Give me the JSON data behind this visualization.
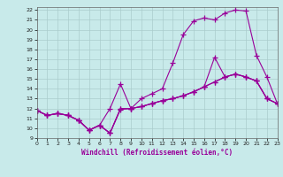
{
  "xlabel": "Windchill (Refroidissement éolien,°C)",
  "background_color": "#c8eaea",
  "grid_color": "#aacccc",
  "line_color": "#990099",
  "xlim": [
    0,
    23
  ],
  "ylim": [
    9,
    22.3
  ],
  "xticks": [
    0,
    1,
    2,
    3,
    4,
    5,
    6,
    7,
    8,
    9,
    10,
    11,
    12,
    13,
    14,
    15,
    16,
    17,
    18,
    19,
    20,
    21,
    22,
    23
  ],
  "yticks": [
    9,
    10,
    11,
    12,
    13,
    14,
    15,
    16,
    17,
    18,
    19,
    20,
    21,
    22
  ],
  "lines": [
    {
      "x": [
        0,
        1,
        2,
        3,
        4,
        5,
        6,
        7,
        8,
        9,
        10,
        11,
        12,
        13,
        14,
        15,
        16,
        17,
        18,
        19,
        20,
        21,
        22,
        23
      ],
      "y": [
        11.8,
        11.3,
        11.5,
        11.3,
        10.8,
        9.8,
        10.3,
        9.5,
        11.9,
        12.0,
        13.0,
        13.5,
        14.0,
        16.6,
        19.5,
        20.9,
        21.2,
        21.0,
        21.7,
        22.0,
        21.9,
        17.4,
        15.2,
        12.5
      ]
    },
    {
      "x": [
        0,
        1,
        2,
        3,
        4,
        5,
        6,
        7,
        8,
        9,
        10,
        11,
        12,
        13,
        14,
        15,
        16,
        17,
        18,
        19,
        20,
        21,
        22,
        23
      ],
      "y": [
        11.8,
        11.3,
        11.5,
        11.3,
        10.8,
        9.8,
        10.3,
        9.5,
        12.0,
        12.0,
        12.2,
        12.5,
        12.8,
        13.0,
        13.3,
        13.7,
        14.2,
        14.7,
        15.2,
        15.5,
        15.2,
        14.8,
        13.0,
        12.5
      ]
    },
    {
      "x": [
        0,
        1,
        2,
        3,
        4,
        5,
        6,
        7,
        8,
        9,
        10,
        11,
        12,
        13,
        14,
        15,
        16,
        17,
        18,
        19,
        20,
        21,
        22,
        23
      ],
      "y": [
        11.8,
        11.3,
        11.5,
        11.3,
        10.8,
        9.8,
        10.3,
        12.0,
        14.5,
        12.0,
        12.2,
        12.5,
        12.8,
        13.0,
        13.3,
        13.7,
        14.2,
        14.7,
        15.2,
        15.5,
        15.2,
        14.8,
        13.0,
        12.5
      ]
    },
    {
      "x": [
        0,
        1,
        2,
        3,
        4,
        5,
        6,
        7,
        8,
        9,
        10,
        11,
        12,
        13,
        14,
        15,
        16,
        17,
        18,
        19,
        20,
        21,
        22,
        23
      ],
      "y": [
        11.8,
        11.3,
        11.5,
        11.3,
        10.8,
        9.8,
        10.3,
        9.5,
        12.0,
        12.0,
        12.2,
        12.5,
        12.8,
        13.0,
        13.3,
        13.7,
        14.2,
        17.2,
        15.2,
        15.5,
        15.2,
        14.8,
        13.0,
        12.5
      ]
    }
  ]
}
